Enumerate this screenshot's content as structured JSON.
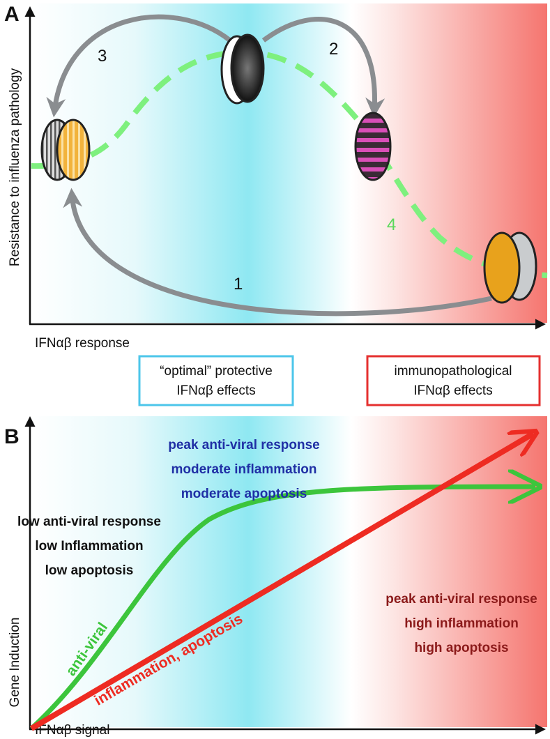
{
  "panel_a": {
    "label": "A",
    "y_axis_label": "Resistance to influenza pathology",
    "x_axis_label": "IFNαβ response",
    "step_labels": [
      "1",
      "2",
      "3",
      "4"
    ],
    "boxes": [
      {
        "lines": [
          "“optimal” protective",
          "IFNαβ effects"
        ]
      },
      {
        "lines": [
          "immunopathological",
          "IFNαβ effects"
        ]
      }
    ]
  },
  "panel_b": {
    "label": "B",
    "y_axis_label": "Gene Induction",
    "x_axis_label": "IFNαβ signal",
    "curve_labels": [
      "anti-viral",
      "inflammation, apoptosis"
    ],
    "annotations": [
      {
        "lines": [
          "peak anti-viral response",
          "moderate inflammation",
          "moderate apoptosis"
        ]
      },
      {
        "lines": [
          "low anti-viral response",
          "low Inflammation",
          "low apoptosis"
        ]
      },
      {
        "lines": [
          "peak anti-viral response",
          "high inflammation",
          "high apoptosis"
        ]
      }
    ]
  }
}
